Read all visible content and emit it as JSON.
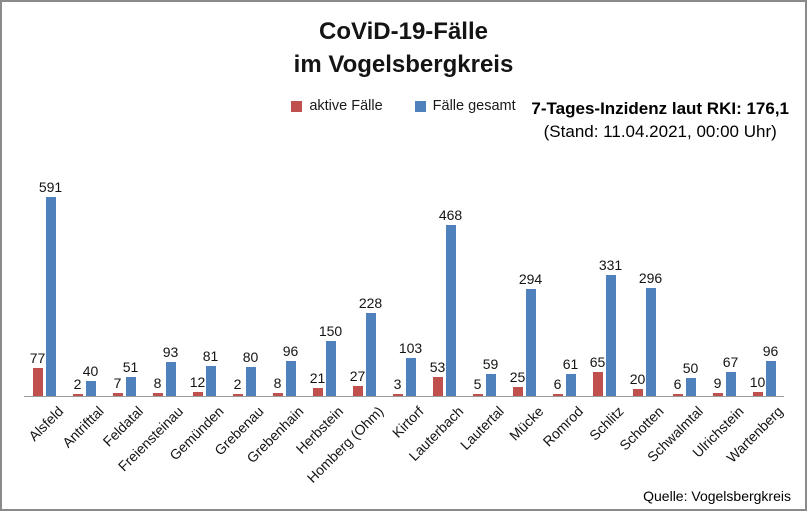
{
  "header": {
    "title_line1": "CoViD-19-Fälle",
    "title_line2": "im Vogelsbergkreis"
  },
  "info": {
    "incidence_line1": "7-Tages-Inzidenz laut RKI: 176,1",
    "incidence_line2": "(Stand: 11.04.2021, 00:00 Uhr)"
  },
  "footer": {
    "source": "Quelle: Vogelsbergkreis"
  },
  "chart_data": {
    "type": "bar",
    "title": "CoViD-19-Fälle im Vogelsbergkreis",
    "categories": [
      "Alsfeld",
      "Antrifttal",
      "Feldatal",
      "Freiensteinau",
      "Gemünden",
      "Grebenau",
      "Grebenhain",
      "Herbstein",
      "Homberg (Ohm)",
      "Kirtorf",
      "Lauterbach",
      "Lautertal",
      "Mücke",
      "Romrod",
      "Schlitz",
      "Schotten",
      "Schwalmtal",
      "Ulrichstein",
      "Wartenberg"
    ],
    "series": [
      {
        "name": "aktive Fälle",
        "color": "#C0504D",
        "values": [
          77,
          2,
          7,
          8,
          12,
          2,
          8,
          21,
          27,
          3,
          53,
          5,
          25,
          6,
          65,
          20,
          6,
          9,
          10
        ]
      },
      {
        "name": "Fälle gesamt",
        "color": "#4F81BD",
        "values": [
          591,
          40,
          51,
          93,
          81,
          80,
          96,
          150,
          228,
          103,
          468,
          59,
          294,
          61,
          331,
          296,
          50,
          67,
          96
        ]
      }
    ],
    "data_labels": true,
    "legend_position": "top",
    "grid": false,
    "y_axis_visible": false,
    "x_label_rotation": 45,
    "ylim": [
      0,
      600
    ]
  }
}
